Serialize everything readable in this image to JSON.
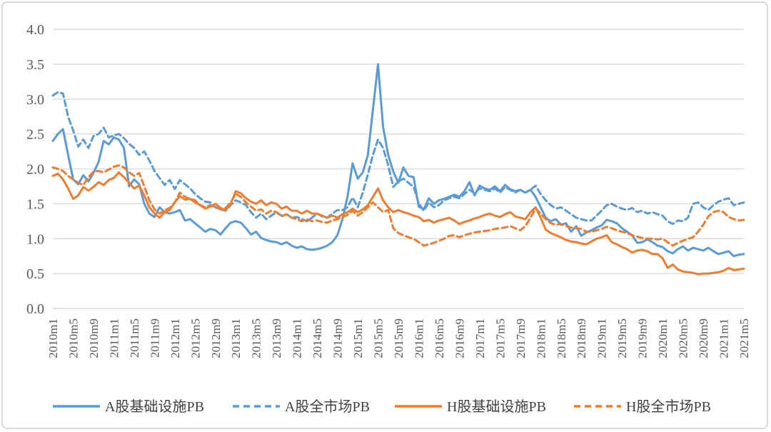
{
  "frame": {
    "background": "#FFFFFF",
    "border_color": "#D9D9D9"
  },
  "chart_data": {
    "type": "line",
    "title": "",
    "xlabel": "",
    "ylabel": "",
    "x_unit": "month",
    "x_start": "2010m1",
    "x_end": "2021m5",
    "ylim": [
      0.0,
      4.0
    ],
    "y_tick_step": 0.5,
    "grid": "horizontal",
    "legend_position": "bottom",
    "gridline_color": "#DCDCDC",
    "axis_line_color": "#D9D9D9",
    "axis_text_color": "#595959",
    "legend_text_color": "#404040",
    "y_tick_labels": [
      "0.0",
      "0.5",
      "1.0",
      "1.5",
      "2.0",
      "2.5",
      "3.0",
      "3.5",
      "4.0"
    ],
    "x_tick_labels": [
      "2010m1",
      "2010m5",
      "2010m9",
      "2011m1",
      "2011m5",
      "2011m9",
      "2012m1",
      "2012m5",
      "2012m9",
      "2013m1",
      "2013m5",
      "2013m9",
      "2014m1",
      "2014m5",
      "2014m9",
      "2015m1",
      "2015m5",
      "2015m9",
      "2016m1",
      "2016m5",
      "2016m9",
      "2017m1",
      "2017m5",
      "2017m9",
      "2018m1",
      "2018m5",
      "2018m9",
      "2019m1",
      "2019m5",
      "2019m9",
      "2020m1",
      "2020m5",
      "2020m9",
      "2021m1",
      "2021m5"
    ],
    "series": [
      {
        "name": "A股基础设施PB",
        "color": "#5B9BD5",
        "style": "solid",
        "values": [
          2.4,
          2.5,
          2.57,
          2.2,
          1.85,
          1.78,
          1.91,
          1.82,
          1.94,
          2.1,
          2.4,
          2.35,
          2.45,
          2.42,
          2.3,
          1.75,
          1.85,
          1.78,
          1.5,
          1.36,
          1.31,
          1.45,
          1.38,
          1.36,
          1.38,
          1.41,
          1.26,
          1.28,
          1.22,
          1.16,
          1.1,
          1.14,
          1.12,
          1.06,
          1.15,
          1.23,
          1.25,
          1.23,
          1.15,
          1.06,
          1.1,
          1.01,
          0.98,
          0.96,
          0.95,
          0.92,
          0.95,
          0.9,
          0.87,
          0.89,
          0.85,
          0.84,
          0.85,
          0.87,
          0.9,
          0.95,
          1.05,
          1.28,
          1.6,
          2.08,
          1.86,
          1.95,
          2.2,
          2.85,
          3.5,
          2.6,
          2.2,
          1.96,
          1.8,
          2.02,
          1.9,
          1.88,
          1.46,
          1.42,
          1.58,
          1.5,
          1.55,
          1.57,
          1.6,
          1.63,
          1.6,
          1.68,
          1.81,
          1.62,
          1.76,
          1.72,
          1.7,
          1.75,
          1.68,
          1.77,
          1.71,
          1.68,
          1.7,
          1.66,
          1.7,
          1.6,
          1.45,
          1.3,
          1.25,
          1.28,
          1.2,
          1.22,
          1.1,
          1.18,
          1.04,
          1.09,
          1.12,
          1.16,
          1.19,
          1.27,
          1.25,
          1.22,
          1.15,
          1.1,
          1.05,
          0.94,
          0.95,
          0.99,
          0.95,
          0.9,
          0.88,
          0.82,
          0.79,
          0.85,
          0.89,
          0.83,
          0.87,
          0.85,
          0.83,
          0.87,
          0.82,
          0.78,
          0.8,
          0.82,
          0.75,
          0.77,
          0.78
        ]
      },
      {
        "name": "A股全市场PB",
        "color": "#5B9BD5",
        "style": "dashed",
        "values": [
          3.05,
          3.1,
          3.08,
          2.75,
          2.55,
          2.32,
          2.42,
          2.3,
          2.47,
          2.5,
          2.59,
          2.45,
          2.48,
          2.5,
          2.44,
          2.36,
          2.3,
          2.2,
          2.25,
          2.12,
          1.97,
          1.87,
          1.77,
          1.84,
          1.71,
          1.84,
          1.78,
          1.72,
          1.64,
          1.58,
          1.53,
          1.52,
          1.45,
          1.42,
          1.4,
          1.48,
          1.55,
          1.52,
          1.48,
          1.38,
          1.3,
          1.36,
          1.28,
          1.33,
          1.38,
          1.33,
          1.35,
          1.3,
          1.31,
          1.28,
          1.25,
          1.3,
          1.36,
          1.32,
          1.3,
          1.36,
          1.41,
          1.41,
          1.45,
          1.59,
          1.45,
          1.66,
          1.92,
          2.2,
          2.42,
          2.3,
          2.05,
          1.74,
          1.82,
          1.86,
          1.8,
          1.74,
          1.51,
          1.4,
          1.52,
          1.45,
          1.48,
          1.55,
          1.58,
          1.6,
          1.58,
          1.64,
          1.7,
          1.65,
          1.72,
          1.7,
          1.68,
          1.72,
          1.66,
          1.74,
          1.7,
          1.66,
          1.7,
          1.66,
          1.7,
          1.76,
          1.64,
          1.55,
          1.48,
          1.43,
          1.45,
          1.4,
          1.35,
          1.3,
          1.28,
          1.26,
          1.26,
          1.33,
          1.4,
          1.48,
          1.5,
          1.46,
          1.43,
          1.41,
          1.44,
          1.38,
          1.4,
          1.36,
          1.38,
          1.35,
          1.33,
          1.25,
          1.21,
          1.26,
          1.25,
          1.3,
          1.5,
          1.52,
          1.45,
          1.41,
          1.48,
          1.53,
          1.56,
          1.58,
          1.48,
          1.5,
          1.52
        ]
      },
      {
        "name": "H股基础设施PB",
        "color": "#ED7D31",
        "style": "solid",
        "values": [
          1.9,
          1.93,
          1.85,
          1.72,
          1.57,
          1.62,
          1.74,
          1.69,
          1.74,
          1.81,
          1.77,
          1.84,
          1.87,
          1.95,
          1.88,
          1.8,
          1.72,
          1.76,
          1.62,
          1.45,
          1.36,
          1.3,
          1.38,
          1.41,
          1.52,
          1.61,
          1.56,
          1.57,
          1.52,
          1.48,
          1.43,
          1.46,
          1.5,
          1.44,
          1.41,
          1.5,
          1.68,
          1.65,
          1.58,
          1.53,
          1.5,
          1.55,
          1.48,
          1.52,
          1.5,
          1.43,
          1.46,
          1.4,
          1.4,
          1.36,
          1.4,
          1.36,
          1.36,
          1.33,
          1.3,
          1.33,
          1.3,
          1.35,
          1.38,
          1.43,
          1.38,
          1.42,
          1.48,
          1.6,
          1.72,
          1.55,
          1.45,
          1.38,
          1.41,
          1.38,
          1.36,
          1.33,
          1.31,
          1.25,
          1.27,
          1.23,
          1.26,
          1.28,
          1.3,
          1.26,
          1.21,
          1.24,
          1.26,
          1.29,
          1.31,
          1.34,
          1.36,
          1.33,
          1.31,
          1.35,
          1.38,
          1.32,
          1.3,
          1.28,
          1.38,
          1.45,
          1.3,
          1.13,
          1.08,
          1.05,
          1.02,
          0.98,
          0.96,
          0.95,
          0.93,
          0.92,
          0.96,
          1.0,
          1.02,
          1.05,
          0.95,
          0.92,
          0.88,
          0.85,
          0.8,
          0.83,
          0.84,
          0.82,
          0.78,
          0.78,
          0.72,
          0.58,
          0.63,
          0.56,
          0.53,
          0.52,
          0.51,
          0.49,
          0.5,
          0.5,
          0.51,
          0.52,
          0.54,
          0.58,
          0.55,
          0.56,
          0.57
        ]
      },
      {
        "name": "H股全市场PB",
        "color": "#ED7D31",
        "style": "dashed",
        "values": [
          2.02,
          2.0,
          1.97,
          1.9,
          1.85,
          1.8,
          1.77,
          1.88,
          1.96,
          1.97,
          1.95,
          1.99,
          2.03,
          2.05,
          2.02,
          1.95,
          1.9,
          1.94,
          1.75,
          1.55,
          1.42,
          1.36,
          1.41,
          1.44,
          1.52,
          1.66,
          1.6,
          1.57,
          1.55,
          1.48,
          1.45,
          1.48,
          1.46,
          1.42,
          1.44,
          1.52,
          1.64,
          1.6,
          1.52,
          1.46,
          1.4,
          1.42,
          1.36,
          1.4,
          1.38,
          1.32,
          1.35,
          1.3,
          1.28,
          1.25,
          1.28,
          1.25,
          1.26,
          1.24,
          1.23,
          1.26,
          1.28,
          1.31,
          1.34,
          1.4,
          1.33,
          1.38,
          1.45,
          1.52,
          1.45,
          1.38,
          1.41,
          1.15,
          1.08,
          1.05,
          1.02,
          1.0,
          0.95,
          0.9,
          0.92,
          0.94,
          0.97,
          1.0,
          1.04,
          1.05,
          1.02,
          1.05,
          1.07,
          1.09,
          1.1,
          1.11,
          1.12,
          1.14,
          1.15,
          1.16,
          1.18,
          1.15,
          1.12,
          1.18,
          1.3,
          1.43,
          1.36,
          1.28,
          1.22,
          1.2,
          1.21,
          1.18,
          1.16,
          1.15,
          1.14,
          1.1,
          1.1,
          1.12,
          1.14,
          1.17,
          1.15,
          1.12,
          1.1,
          1.08,
          1.05,
          1.03,
          1.01,
          1.0,
          1.0,
          0.99,
          1.0,
          0.95,
          0.9,
          0.94,
          0.97,
          1.0,
          1.02,
          1.1,
          1.2,
          1.32,
          1.38,
          1.4,
          1.38,
          1.31,
          1.28,
          1.26,
          1.27
        ]
      }
    ]
  }
}
